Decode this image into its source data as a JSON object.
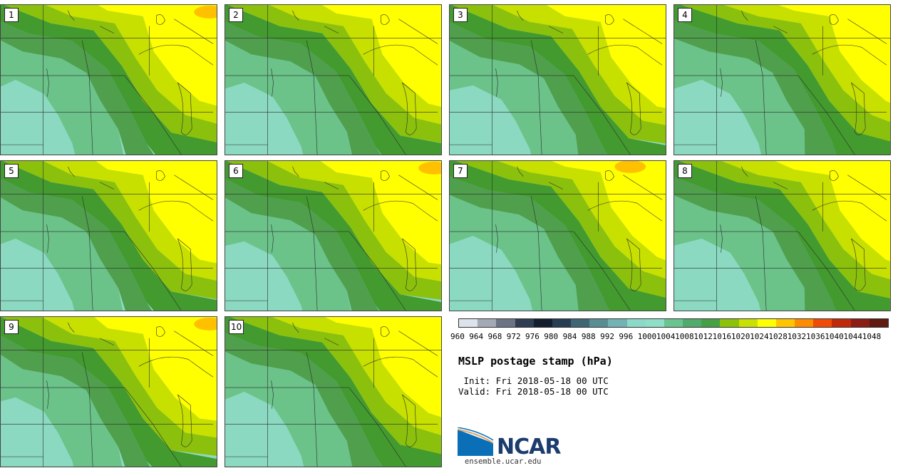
{
  "panels": [
    {
      "label": "1",
      "variant": 0
    },
    {
      "label": "2",
      "variant": 1
    },
    {
      "label": "3",
      "variant": 2
    },
    {
      "label": "4",
      "variant": 3
    },
    {
      "label": "5",
      "variant": 4
    },
    {
      "label": "6",
      "variant": 5
    },
    {
      "label": "7",
      "variant": 6
    },
    {
      "label": "8",
      "variant": 7
    },
    {
      "label": "9",
      "variant": 8
    },
    {
      "label": "10",
      "variant": 9
    }
  ],
  "colorbar": {
    "levels": [
      "960",
      "964",
      "968",
      "972",
      "976",
      "980",
      "984",
      "988",
      "992",
      "996",
      "1000",
      "1004",
      "1008",
      "1012",
      "1016",
      "1020",
      "1024",
      "1028",
      "1032",
      "1036",
      "1040",
      "1044",
      "1048"
    ],
    "colors": [
      "#dce3ea",
      "#a4a9b6",
      "#6b7384",
      "#303c52",
      "#141e30",
      "#273e52",
      "#3e6673",
      "#5a8d92",
      "#73b3b3",
      "#8cd9c8",
      "#8fdec7",
      "#6ac48f",
      "#51ab6c",
      "#47a044",
      "#8cc20a",
      "#c9e000",
      "#ffff00",
      "#ffc600",
      "#ff8c00",
      "#f24b07",
      "#c02a0c",
      "#8b1d14",
      "#601a10"
    ]
  },
  "title": "MSLP postage stamp (hPa)",
  "init": " Init: Fri 2018-05-18 00 UTC",
  "valid": "Valid: Fri 2018-05-18 00 UTC",
  "logo": {
    "text": "NCAR",
    "colors": [
      "#0a6fb7",
      "#1b3c6d",
      "#d9a46b"
    ]
  },
  "url": "ensemble.ucar.edu",
  "fill_colors": {
    "p1008": "#8cd9c2",
    "p1012": "#6bc38a",
    "p1016": "#4f9f4d",
    "p1020": "#439a2f",
    "p1024": "#8bc10c",
    "p1028": "#c7e000",
    "p1032": "#ffff00",
    "p1036": "#ffc000"
  }
}
